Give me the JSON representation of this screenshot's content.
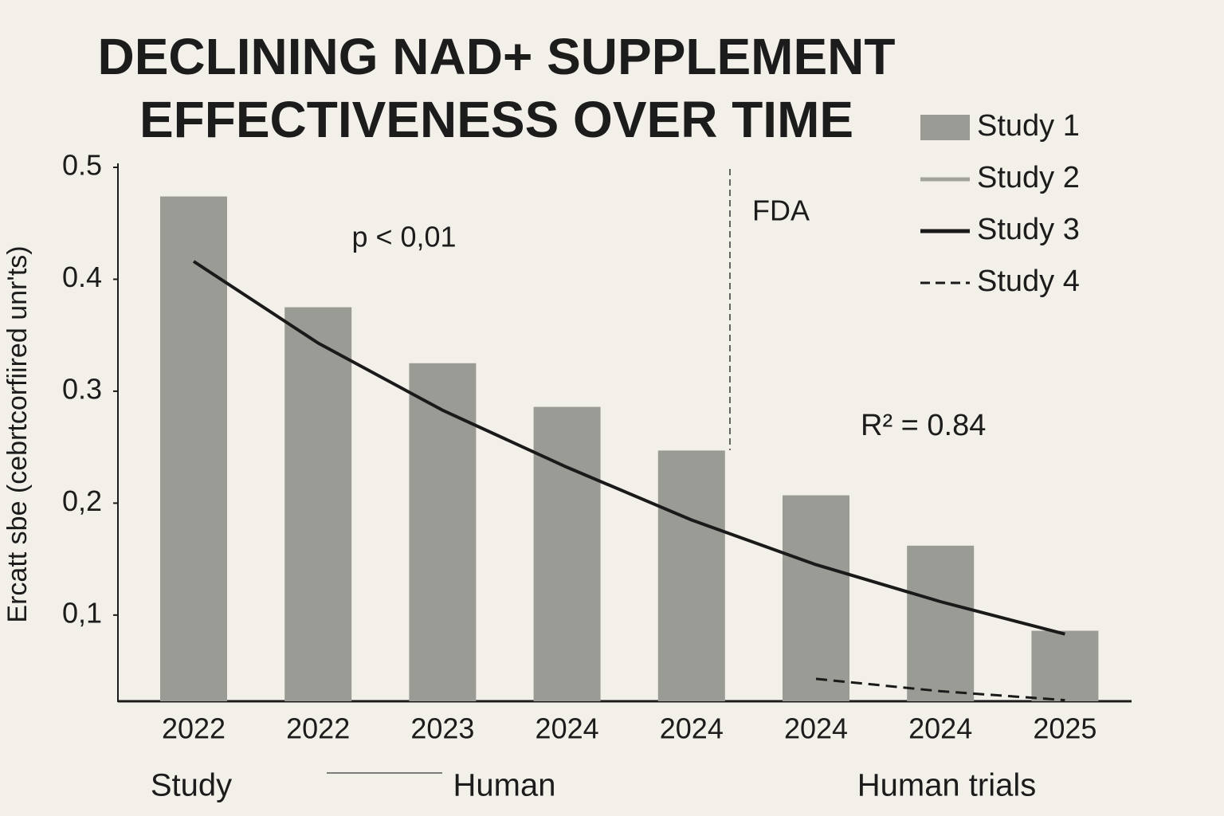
{
  "chart_data": {
    "type": "bar",
    "title": [
      "DECLINING NAD+ SUPPLEMENT",
      "EFFECTIVENESS OVER TIME"
    ],
    "y_label": "Ercatt sbe (cebrtcorfiired unr'ts)",
    "categories": [
      "2022",
      "2022",
      "2023",
      "2024",
      "2024",
      "2024",
      "2024",
      "2025"
    ],
    "series": [
      {
        "name": "Study 1",
        "kind": "bar",
        "color": "#9b9b95",
        "values": [
          0.474,
          0.375,
          0.325,
          0.286,
          0.247,
          0.207,
          0.162,
          0.086
        ]
      },
      {
        "name": "Study 2",
        "kind": "line",
        "color": "#a3a39d",
        "values": [
          null,
          null,
          null,
          null,
          null,
          null,
          null,
          null
        ]
      },
      {
        "name": "Study 3",
        "kind": "line",
        "color": "#1a1a1a",
        "values": [
          0.416,
          0.343,
          0.283,
          0.232,
          0.185,
          0.145,
          0.112,
          0.083
        ]
      },
      {
        "name": "Study 4",
        "kind": "dashed",
        "color": "#1a1a1a",
        "values": [
          null,
          null,
          null,
          null,
          null,
          0.043,
          0.032,
          0.024
        ]
      }
    ],
    "ylim": [
      0.023,
      0.5
    ],
    "yticks": [
      0.5,
      0.4,
      0.3,
      {
        "value": 0.2,
        "label": "0,2"
      },
      {
        "value": 0.1,
        "label": "0,1"
      }
    ],
    "annotations": [
      "p < 0,01",
      "FDA",
      "R² = 0.84"
    ],
    "groups": [
      "Study",
      "Human",
      "Human trials"
    ]
  }
}
